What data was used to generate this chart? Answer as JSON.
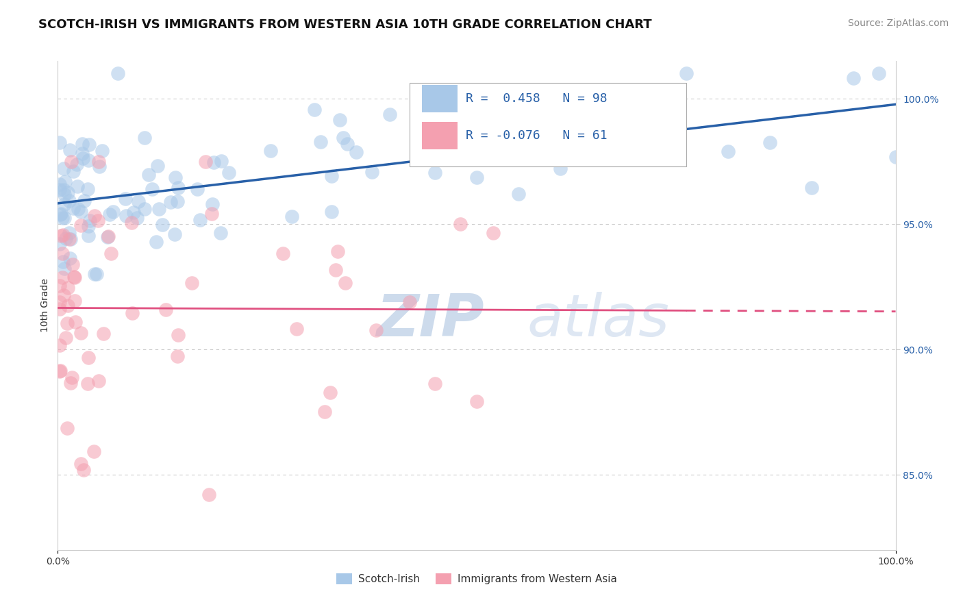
{
  "title": "SCOTCH-IRISH VS IMMIGRANTS FROM WESTERN ASIA 10TH GRADE CORRELATION CHART",
  "source_text": "Source: ZipAtlas.com",
  "ylabel": "10th Grade",
  "xlim": [
    0,
    100
  ],
  "ylim": [
    82,
    101.5
  ],
  "yticks": [
    85,
    90,
    95,
    100
  ],
  "xtick_labels": [
    "0.0%",
    "100.0%"
  ],
  "ytick_labels": [
    "85.0%",
    "90.0%",
    "95.0%",
    "100.0%"
  ],
  "blue_R": 0.458,
  "blue_N": 98,
  "pink_R": -0.076,
  "pink_N": 61,
  "blue_color": "#a8c8e8",
  "pink_color": "#f4a0b0",
  "blue_line_color": "#2860a8",
  "pink_line_color": "#e05080",
  "watermark_zip": "ZIP",
  "watermark_atlas": "atlas",
  "legend_label_blue": "Scotch-Irish",
  "legend_label_pink": "Immigrants from Western Asia",
  "grid_color": "#cccccc",
  "background_color": "#ffffff",
  "title_fontsize": 13,
  "axis_label_fontsize": 10,
  "tick_fontsize": 10,
  "source_fontsize": 10,
  "blue_seed": 42,
  "pink_seed": 77
}
